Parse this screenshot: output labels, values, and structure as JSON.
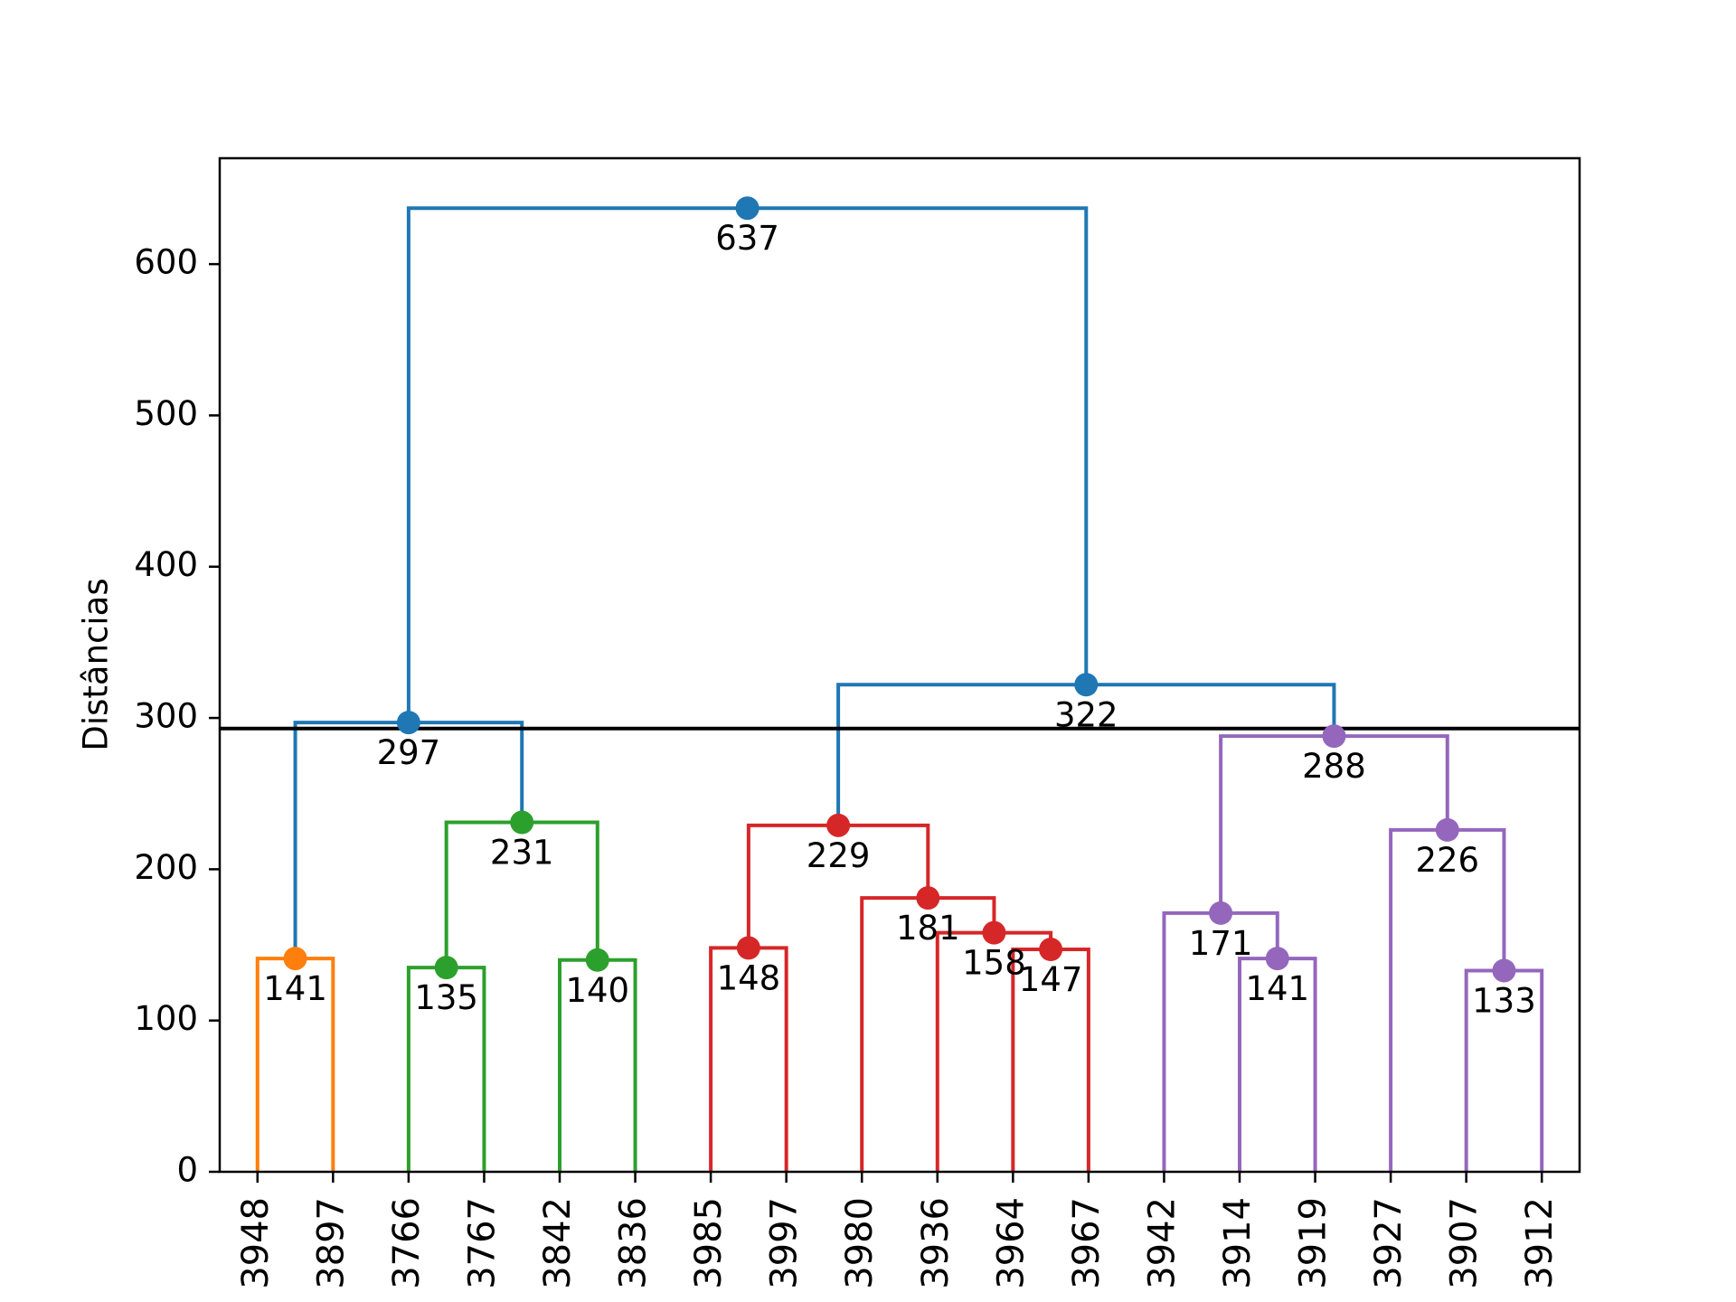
{
  "chart_data": {
    "type": "dendrogram",
    "ylabel": "Distâncias",
    "ylim": [
      0,
      670
    ],
    "yticks": [
      0,
      100,
      200,
      300,
      400,
      500,
      600
    ],
    "threshold": 293,
    "threshold_color": "#000000",
    "leaves": [
      "3948",
      "3897",
      "3766",
      "3767",
      "3842",
      "3836",
      "3985",
      "3997",
      "3980",
      "3936",
      "3964",
      "3967",
      "3942",
      "3914",
      "3919",
      "3927",
      "3907",
      "3912"
    ],
    "colors": {
      "root": "#1f77b4",
      "orange": "#ff7f0e",
      "green": "#2ca02c",
      "red": "#d62728",
      "purple": "#9467bd"
    },
    "merges": [
      {
        "id": "n141a",
        "left": "L0",
        "right": "L1",
        "height": 141,
        "label": "141",
        "color": "orange"
      },
      {
        "id": "n135",
        "left": "L2",
        "right": "L3",
        "height": 135,
        "label": "135",
        "color": "green"
      },
      {
        "id": "n140",
        "left": "L4",
        "right": "L5",
        "height": 140,
        "label": "140",
        "color": "green"
      },
      {
        "id": "n231",
        "left": "n135",
        "right": "n140",
        "height": 231,
        "label": "231",
        "color": "green"
      },
      {
        "id": "n297",
        "left": "n141a",
        "right": "n231",
        "height": 297,
        "label": "297",
        "color": "root"
      },
      {
        "id": "n148",
        "left": "L6",
        "right": "L7",
        "height": 148,
        "label": "148",
        "color": "red"
      },
      {
        "id": "n147",
        "left": "L10",
        "right": "L11",
        "height": 147,
        "label": "147",
        "color": "red"
      },
      {
        "id": "n158",
        "left": "L9",
        "right": "n147",
        "height": 158,
        "label": "158",
        "color": "red"
      },
      {
        "id": "n181",
        "left": "L8",
        "right": "n158",
        "height": 181,
        "label": "181",
        "color": "red"
      },
      {
        "id": "n229",
        "left": "n148",
        "right": "n181",
        "height": 229,
        "label": "229",
        "color": "red"
      },
      {
        "id": "n141b",
        "left": "L13",
        "right": "L14",
        "height": 141,
        "label": "141",
        "color": "purple"
      },
      {
        "id": "n171",
        "left": "L12",
        "right": "n141b",
        "height": 171,
        "label": "171",
        "color": "purple"
      },
      {
        "id": "n133",
        "left": "L16",
        "right": "L17",
        "height": 133,
        "label": "133",
        "color": "purple"
      },
      {
        "id": "n226",
        "left": "L15",
        "right": "n133",
        "height": 226,
        "label": "226",
        "color": "purple"
      },
      {
        "id": "n288",
        "left": "n171",
        "right": "n226",
        "height": 288,
        "label": "288",
        "color": "purple"
      },
      {
        "id": "n322",
        "left": "n229",
        "right": "n288",
        "height": 322,
        "label": "322",
        "color": "root"
      },
      {
        "id": "n637",
        "left": "n297",
        "right": "n322",
        "height": 637,
        "label": "637",
        "color": "root"
      }
    ]
  }
}
